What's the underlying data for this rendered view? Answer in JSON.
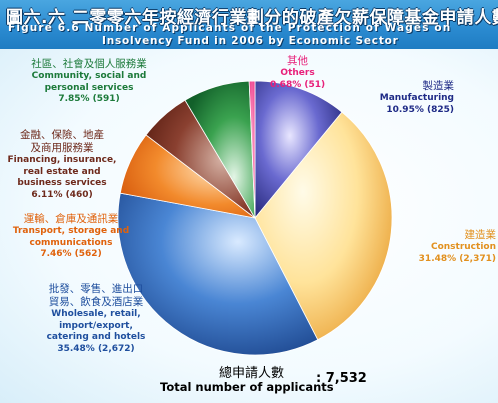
{
  "header": {
    "title_zh": "圖六.六  二零零六年按經濟行業劃分的破產欠薪保障基金申請人數",
    "title_en_line1": "Figure 6.6 Number of Applicants of the Protection of Wages on",
    "title_en_line2": "Insolvency Fund in 2006 by Economic Sector"
  },
  "total": {
    "label_zh": "總申請人數",
    "label_en": "Total number of applicants",
    "value": ": 7,532"
  },
  "chart_data": {
    "type": "pie",
    "total": 7532,
    "slices": [
      {
        "label_zh": "製造業",
        "label_en": "Manufacturing",
        "percent": 10.95,
        "count": 825,
        "percent_label": "10.95% (825)",
        "color": "#2b2f8f"
      },
      {
        "label_zh": "建造業",
        "label_en": "Construction",
        "percent": 31.48,
        "count": 2371,
        "percent_label": "31.48% (2,371)",
        "color": "#f0a640"
      },
      {
        "label_zh": "批發、零售、進出口貿易、飲食及酒店業",
        "label_zh_line1": "批發、零售、進出口",
        "label_zh_line2": "貿易、飲食及酒店業",
        "label_en": "Wholesale, retail, import/export, catering and hotels",
        "label_en_line1": "Wholesale, retail,",
        "label_en_line2": "import/export,",
        "label_en_line3": "catering and hotels",
        "percent": 35.48,
        "count": 2672,
        "percent_label": "35.48% (2,672)",
        "color": "#1f4f9e"
      },
      {
        "label_zh": "運輸、倉庫及通訊業",
        "label_en": "Transport, storage and communications",
        "label_en_line1": "Transport, storage and",
        "label_en_line2": "communications",
        "percent": 7.46,
        "count": 562,
        "percent_label": "7.46% (562)",
        "color": "#ec6a12"
      },
      {
        "label_zh": "金融、保險、地產及商用服務業",
        "label_zh_line1": "金融、保險、地產",
        "label_zh_line2": "及商用服務業",
        "label_en": "Financing, insurance, real estate and business services",
        "label_en_line1": "Financing, insurance,",
        "label_en_line2": "real estate and",
        "label_en_line3": "business services",
        "percent": 6.11,
        "count": 460,
        "percent_label": "6.11% (460)",
        "color": "#6e2a1c"
      },
      {
        "label_zh": "社區、社會及個人服務業",
        "label_en": "Community, social and personal services",
        "label_en_line1": "Community, social and",
        "label_en_line2": "personal services",
        "percent": 7.85,
        "count": 591,
        "percent_label": "7.85% (591)",
        "color": "#1c7a3a"
      },
      {
        "label_zh": "其他",
        "label_en": "Others",
        "percent": 0.68,
        "count": 51,
        "percent_label": "0.68% (51)",
        "color": "#e8207a"
      }
    ]
  }
}
